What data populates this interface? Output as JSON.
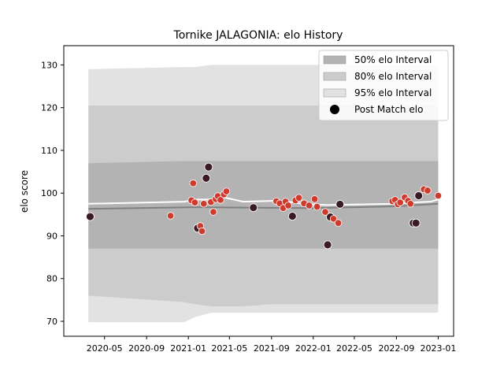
{
  "chart_data": {
    "type": "line",
    "title": "Tornike JALAGONIA: elo History",
    "xlabel": "",
    "ylabel": "elo score",
    "x_range": [
      "2020-01-03",
      "2023-02-15"
    ],
    "ylim": [
      66.5,
      134.5
    ],
    "grid": false,
    "legend_placement": "top-right",
    "x_ticks": [
      "2020-05",
      "2020-09",
      "2021-01",
      "2021-05",
      "2021-09",
      "2022-01",
      "2022-05",
      "2022-09",
      "2023-01"
    ],
    "y_ticks": [
      70,
      80,
      90,
      100,
      110,
      120,
      130
    ],
    "colors": {
      "band50": "#b3b3b3",
      "band80": "#cccccc",
      "band95": "#e2e2e2",
      "mean_line": "#ffffff",
      "median_line": "#808080",
      "dot_fill": "#d03a2c",
      "dot_edge": "#ffffff",
      "dark_dot": "#3a1a24"
    },
    "legend": [
      {
        "label": "50% elo Interval",
        "kind": "band50"
      },
      {
        "label": "80% elo Interval",
        "kind": "band80"
      },
      {
        "label": "95% elo Interval",
        "kind": "band95"
      },
      {
        "label": "Post Match elo",
        "kind": "marker"
      }
    ],
    "bands": {
      "x": [
        "2020-03-15",
        "2020-12-20",
        "2021-01-20",
        "2021-03-10",
        "2021-04-20",
        "2021-06-10",
        "2021-09-01",
        "2021-11-01",
        "2022-01-01",
        "2022-03-01",
        "2022-09-01",
        "2023-01-01"
      ],
      "p2_5": [
        69.8,
        69.8,
        71.0,
        72.0,
        72.0,
        72.0,
        72.0,
        72.0,
        72.0,
        72.0,
        72.0,
        72.0
      ],
      "p10": [
        76.0,
        74.5,
        74.0,
        73.5,
        73.5,
        73.5,
        74.0,
        74.0,
        74.0,
        74.0,
        74.0,
        74.0
      ],
      "p25": [
        87.0,
        87.0,
        87.0,
        87.0,
        87.0,
        87.0,
        87.0,
        87.0,
        87.0,
        87.0,
        87.0,
        87.0
      ],
      "p75": [
        107.0,
        107.5,
        107.5,
        107.5,
        107.5,
        107.5,
        107.5,
        107.5,
        107.5,
        107.5,
        107.5,
        107.5
      ],
      "p90": [
        120.5,
        120.5,
        120.5,
        120.5,
        120.5,
        120.5,
        120.5,
        120.5,
        120.5,
        120.5,
        120.5,
        120.5
      ],
      "p97_5": [
        129.0,
        129.5,
        129.5,
        130.0,
        130.0,
        130.0,
        130.0,
        130.0,
        130.0,
        130.0,
        130.0,
        130.0
      ]
    },
    "mean_line": {
      "x": [
        "2020-03-15",
        "2020-12-20",
        "2021-01-20",
        "2021-03-10",
        "2021-04-15",
        "2021-06-10",
        "2021-09-10",
        "2021-10-20",
        "2021-12-01",
        "2022-02-10",
        "2022-09-01",
        "2022-10-15",
        "2022-12-10",
        "2023-01-01"
      ],
      "y": [
        97.5,
        98.0,
        98.5,
        98.5,
        99.0,
        98.0,
        98.2,
        98.0,
        97.5,
        97.2,
        97.5,
        97.8,
        98.0,
        98.5
      ]
    },
    "median_line": {
      "x": [
        "2020-03-15",
        "2021-01-20",
        "2021-06-10",
        "2022-01-01",
        "2022-09-01",
        "2023-01-01"
      ],
      "y": [
        96.3,
        96.7,
        96.6,
        96.5,
        96.9,
        97.5
      ]
    },
    "points": [
      {
        "x": "2020-03-20",
        "y": 94.5,
        "dark": true
      },
      {
        "x": "2020-11-10",
        "y": 94.7,
        "dark": false
      },
      {
        "x": "2021-01-10",
        "y": 98.3,
        "dark": false
      },
      {
        "x": "2021-01-15",
        "y": 102.3,
        "dark": false
      },
      {
        "x": "2021-01-20",
        "y": 97.8,
        "dark": false
      },
      {
        "x": "2021-01-28",
        "y": 91.8,
        "dark": true
      },
      {
        "x": "2021-02-05",
        "y": 92.3,
        "dark": false
      },
      {
        "x": "2021-02-10",
        "y": 91.1,
        "dark": false
      },
      {
        "x": "2021-02-15",
        "y": 97.5,
        "dark": false
      },
      {
        "x": "2021-02-22",
        "y": 103.5,
        "dark": true
      },
      {
        "x": "2021-03-01",
        "y": 106.1,
        "dark": true
      },
      {
        "x": "2021-03-08",
        "y": 97.9,
        "dark": false
      },
      {
        "x": "2021-03-15",
        "y": 95.6,
        "dark": false
      },
      {
        "x": "2021-03-22",
        "y": 98.6,
        "dark": false
      },
      {
        "x": "2021-03-28",
        "y": 99.3,
        "dark": false
      },
      {
        "x": "2021-04-05",
        "y": 98.4,
        "dark": false
      },
      {
        "x": "2021-04-15",
        "y": 99.7,
        "dark": false
      },
      {
        "x": "2021-04-22",
        "y": 100.4,
        "dark": false
      },
      {
        "x": "2021-07-10",
        "y": 96.6,
        "dark": true
      },
      {
        "x": "2021-09-15",
        "y": 98.1,
        "dark": false
      },
      {
        "x": "2021-09-25",
        "y": 97.6,
        "dark": false
      },
      {
        "x": "2021-10-05",
        "y": 96.5,
        "dark": false
      },
      {
        "x": "2021-10-12",
        "y": 98.0,
        "dark": false
      },
      {
        "x": "2021-10-20",
        "y": 97.1,
        "dark": false
      },
      {
        "x": "2021-11-01",
        "y": 94.6,
        "dark": true
      },
      {
        "x": "2021-11-10",
        "y": 98.3,
        "dark": false
      },
      {
        "x": "2021-11-20",
        "y": 98.9,
        "dark": false
      },
      {
        "x": "2021-12-05",
        "y": 97.6,
        "dark": false
      },
      {
        "x": "2021-12-20",
        "y": 97.1,
        "dark": false
      },
      {
        "x": "2022-01-05",
        "y": 98.6,
        "dark": false
      },
      {
        "x": "2022-01-12",
        "y": 96.8,
        "dark": false
      },
      {
        "x": "2022-02-05",
        "y": 95.6,
        "dark": false
      },
      {
        "x": "2022-02-12",
        "y": 87.9,
        "dark": true
      },
      {
        "x": "2022-02-20",
        "y": 94.4,
        "dark": true
      },
      {
        "x": "2022-03-01",
        "y": 94.0,
        "dark": false
      },
      {
        "x": "2022-03-15",
        "y": 93.0,
        "dark": false
      },
      {
        "x": "2022-03-20",
        "y": 97.4,
        "dark": true
      },
      {
        "x": "2022-08-20",
        "y": 98.1,
        "dark": false
      },
      {
        "x": "2022-08-28",
        "y": 98.4,
        "dark": false
      },
      {
        "x": "2022-09-05",
        "y": 97.4,
        "dark": false
      },
      {
        "x": "2022-09-12",
        "y": 97.8,
        "dark": false
      },
      {
        "x": "2022-09-25",
        "y": 99.0,
        "dark": false
      },
      {
        "x": "2022-10-05",
        "y": 98.2,
        "dark": false
      },
      {
        "x": "2022-10-12",
        "y": 97.5,
        "dark": false
      },
      {
        "x": "2022-10-20",
        "y": 93.0,
        "dark": true
      },
      {
        "x": "2022-10-28",
        "y": 93.0,
        "dark": true
      },
      {
        "x": "2022-11-05",
        "y": 99.4,
        "dark": true
      },
      {
        "x": "2022-11-20",
        "y": 100.9,
        "dark": false
      },
      {
        "x": "2022-12-01",
        "y": 100.6,
        "dark": false
      },
      {
        "x": "2023-01-01",
        "y": 99.4,
        "dark": false
      }
    ]
  }
}
